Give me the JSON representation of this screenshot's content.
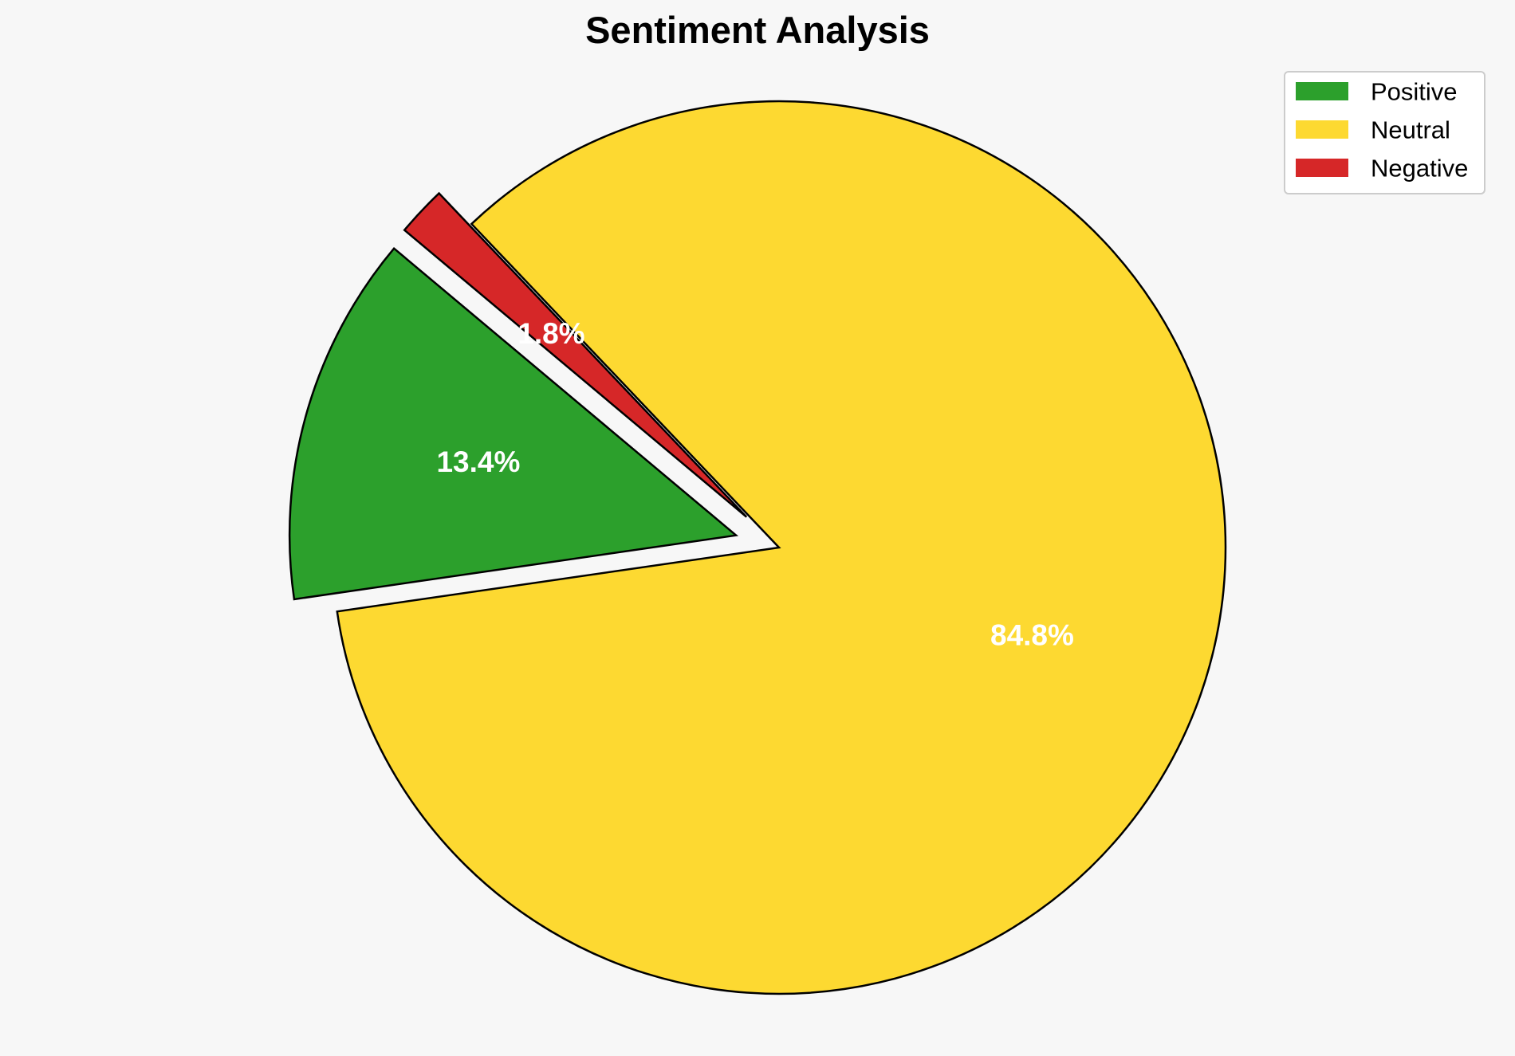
{
  "chart_data": {
    "type": "pie",
    "title": "Sentiment Analysis",
    "slices": [
      {
        "label": "Positive",
        "value": 13.4,
        "display": "13.4%",
        "color": "#2ca02c",
        "exploded": true
      },
      {
        "label": "Neutral",
        "value": 84.8,
        "display": "84.8%",
        "color": "#fdd931",
        "exploded": false
      },
      {
        "label": "Negative",
        "value": 1.8,
        "display": "1.8%",
        "color": "#d62728",
        "exploded": true
      }
    ],
    "legend": {
      "placement": "top-right",
      "entries": [
        "Positive",
        "Neutral",
        "Negative"
      ]
    },
    "start_angle_deg": 140,
    "direction": "counterclockwise",
    "label_color": "#ffffff",
    "edge_color": "#000000",
    "background": "#f7f7f7"
  }
}
